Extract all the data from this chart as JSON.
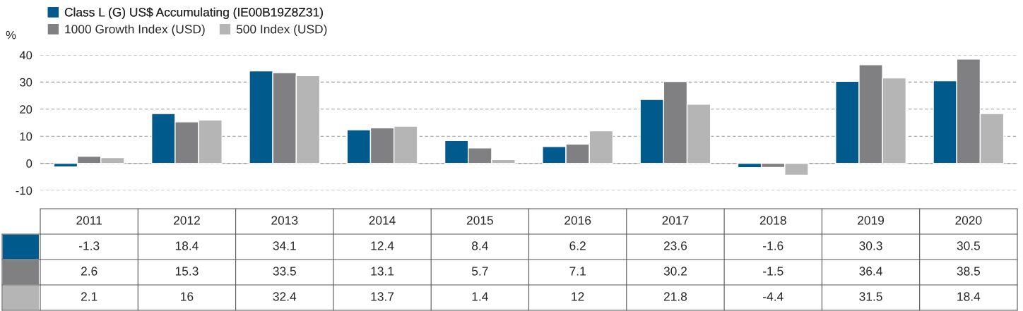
{
  "chart_data": {
    "type": "bar",
    "ylabel": "%",
    "categories": [
      "2011",
      "2012",
      "2013",
      "2014",
      "2015",
      "2016",
      "2017",
      "2018",
      "2019",
      "2020"
    ],
    "series": [
      {
        "name": "Class L (G) US$ Accumulating (IE00B19Z8Z31)",
        "color": "#005a8c",
        "values": [
          -1.3,
          18.4,
          34.1,
          12.4,
          8.4,
          6.2,
          23.6,
          -1.6,
          30.3,
          30.5
        ]
      },
      {
        "name": "1000 Growth Index (USD)",
        "color": "#808083",
        "values": [
          2.6,
          15.3,
          33.5,
          13.1,
          5.7,
          7.1,
          30.2,
          -1.5,
          36.4,
          38.5
        ]
      },
      {
        "name": "500 Index (USD)",
        "color": "#b5b5b5",
        "values": [
          2.1,
          16,
          32.4,
          13.7,
          1.4,
          12,
          21.8,
          -4.4,
          31.5,
          18.4
        ]
      }
    ],
    "ylim": [
      -10,
      40
    ],
    "yticks": [
      -10,
      0,
      10,
      20,
      30,
      40
    ],
    "grid": "y",
    "legend": "top left",
    "data_labels": true
  }
}
